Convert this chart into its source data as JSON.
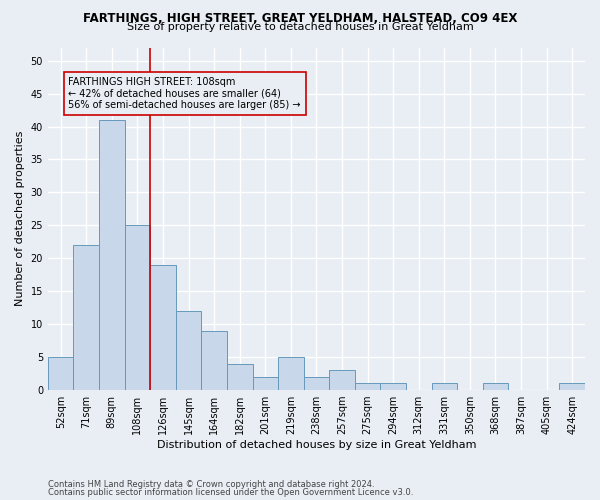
{
  "title": "FARTHINGS, HIGH STREET, GREAT YELDHAM, HALSTEAD, CO9 4EX",
  "subtitle": "Size of property relative to detached houses in Great Yeldham",
  "xlabel": "Distribution of detached houses by size in Great Yeldham",
  "ylabel": "Number of detached properties",
  "footnote1": "Contains HM Land Registry data © Crown copyright and database right 2024.",
  "footnote2": "Contains public sector information licensed under the Open Government Licence v3.0.",
  "bins": [
    "52sqm",
    "71sqm",
    "89sqm",
    "108sqm",
    "126sqm",
    "145sqm",
    "164sqm",
    "182sqm",
    "201sqm",
    "219sqm",
    "238sqm",
    "257sqm",
    "275sqm",
    "294sqm",
    "312sqm",
    "331sqm",
    "350sqm",
    "368sqm",
    "387sqm",
    "405sqm",
    "424sqm"
  ],
  "values": [
    5,
    22,
    41,
    25,
    19,
    12,
    9,
    4,
    2,
    5,
    2,
    3,
    1,
    1,
    0,
    1,
    0,
    1,
    0,
    0,
    1
  ],
  "bar_color": "#c8d8ea",
  "bar_edge_color": "#6699bb",
  "highlight_index": 3,
  "highlight_line_color": "#cc0000",
  "annotation_box_color": "#cc0000",
  "annotation_text": "FARTHINGS HIGH STREET: 108sqm\n← 42% of detached houses are smaller (64)\n56% of semi-detached houses are larger (85) →",
  "ylim": [
    0,
    52
  ],
  "yticks": [
    0,
    5,
    10,
    15,
    20,
    25,
    30,
    35,
    40,
    45,
    50
  ],
  "background_color": "#e8eef4",
  "grid_color": "#ffffff",
  "title_fontsize": 8.5,
  "subtitle_fontsize": 8.0,
  "xlabel_fontsize": 8.0,
  "ylabel_fontsize": 8.0,
  "tick_fontsize": 7.0,
  "annot_fontsize": 7.0,
  "footnote_fontsize": 6.0
}
